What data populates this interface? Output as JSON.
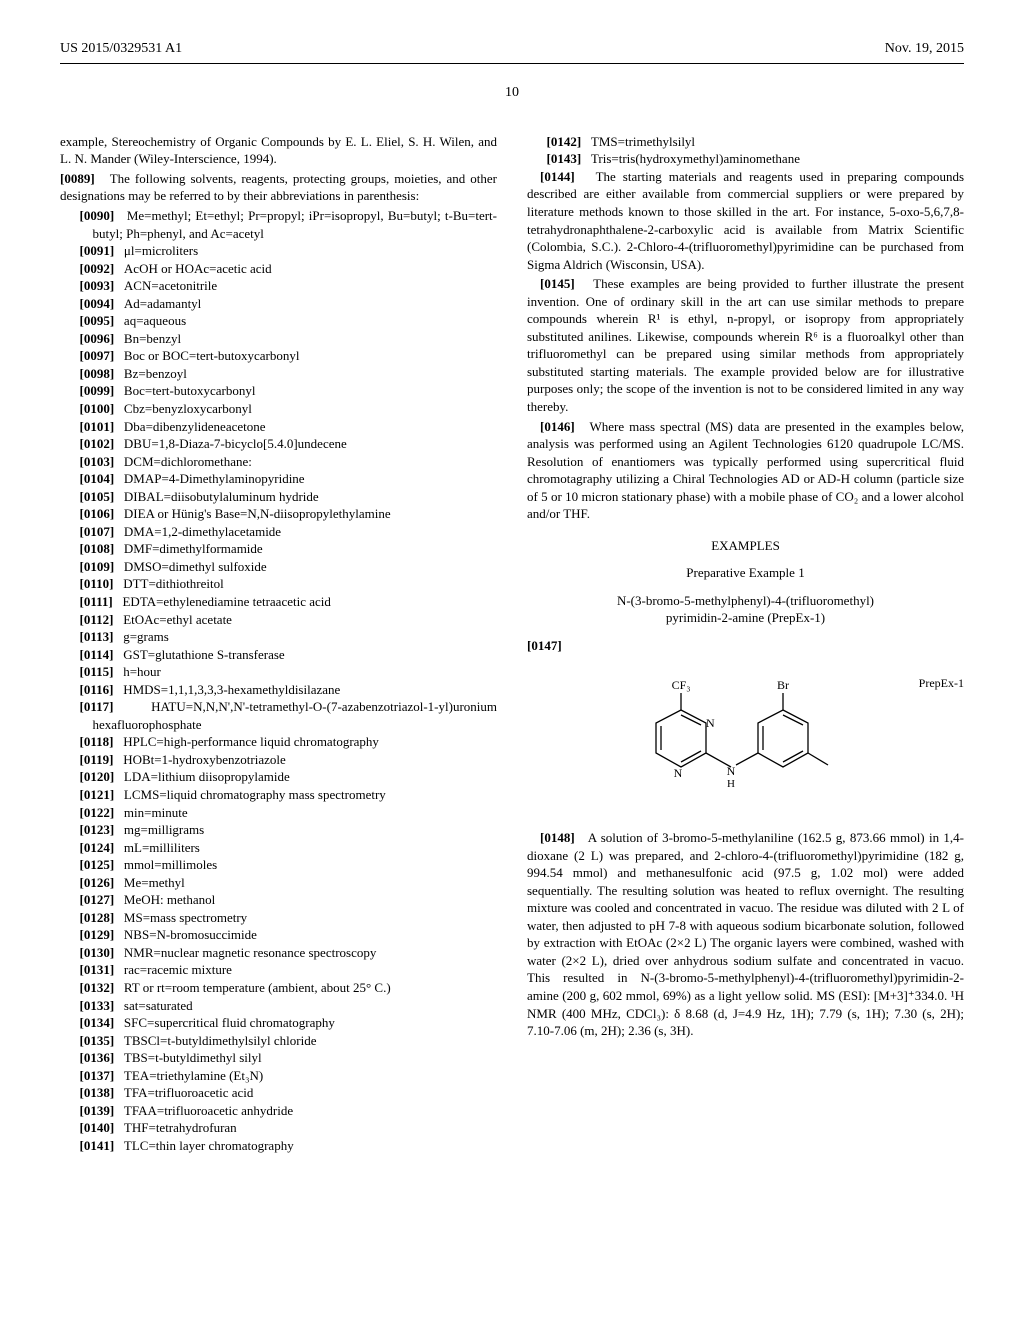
{
  "header": {
    "pub_number": "US 2015/0329531 A1",
    "pub_date": "Nov. 19, 2015"
  },
  "page_number": "10",
  "col1": {
    "intro": "example, Stereochemistry of Organic Compounds by E. L. Eliel, S. H. Wilen, and L. N. Mander (Wiley-Interscience, 1994).",
    "para_0089_num": "[0089]",
    "para_0089": "The following solvents, reagents, protecting groups, moieties, and other designations may be referred to by their abbreviations in parenthesis:",
    "abbrevs": [
      {
        "num": "[0090]",
        "text": "Me=methyl; Et=ethyl; Pr=propyl; iPr=isopropyl, Bu=butyl; t-Bu=tert-butyl; Ph=phenyl, and Ac=acetyl"
      },
      {
        "num": "[0091]",
        "text": "μl=microliters"
      },
      {
        "num": "[0092]",
        "text": "AcOH or HOAc=acetic acid"
      },
      {
        "num": "[0093]",
        "text": "ACN=acetonitrile"
      },
      {
        "num": "[0094]",
        "text": "Ad=adamantyl"
      },
      {
        "num": "[0095]",
        "text": "aq=aqueous"
      },
      {
        "num": "[0096]",
        "text": "Bn=benzyl"
      },
      {
        "num": "[0097]",
        "text": "Boc or BOC=tert-butoxycarbonyl"
      },
      {
        "num": "[0098]",
        "text": "Bz=benzoyl"
      },
      {
        "num": "[0099]",
        "text": "Boc=tert-butoxycarbonyl"
      },
      {
        "num": "[0100]",
        "text": "Cbz=benyzloxycarbonyl"
      },
      {
        "num": "[0101]",
        "text": "Dba=dibenzylideneacetone"
      },
      {
        "num": "[0102]",
        "text": "DBU=1,8-Diaza-7-bicyclo[5.4.0]undecene"
      },
      {
        "num": "[0103]",
        "text": "DCM=dichloromethane:"
      },
      {
        "num": "[0104]",
        "text": "DMAP=4-Dimethylaminopyridine"
      },
      {
        "num": "[0105]",
        "text": "DIBAL=diisobutylaluminum hydride"
      },
      {
        "num": "[0106]",
        "text": "DIEA or Hünig's Base=N,N-diisopropylethylamine"
      },
      {
        "num": "[0107]",
        "text": "DMA=1,2-dimethylacetamide"
      },
      {
        "num": "[0108]",
        "text": "DMF=dimethylformamide"
      },
      {
        "num": "[0109]",
        "text": "DMSO=dimethyl sulfoxide"
      },
      {
        "num": "[0110]",
        "text": "DTT=dithiothreitol"
      },
      {
        "num": "[0111]",
        "text": "EDTA=ethylenediamine tetraacetic acid"
      },
      {
        "num": "[0112]",
        "text": "EtOAc=ethyl acetate"
      },
      {
        "num": "[0113]",
        "text": "g=grams"
      },
      {
        "num": "[0114]",
        "text": "GST=glutathione S-transferase"
      },
      {
        "num": "[0115]",
        "text": "h=hour"
      },
      {
        "num": "[0116]",
        "text": "HMDS=1,1,1,3,3,3-hexamethyldisilazane"
      },
      {
        "num": "[0117]",
        "text": "HATU=N,N,N',N'-tetramethyl-O-(7-azabenzotriazol-1-yl)uronium hexafluorophosphate"
      },
      {
        "num": "[0118]",
        "text": "HPLC=high-performance liquid chromatography"
      },
      {
        "num": "[0119]",
        "text": "HOBt=1-hydroxybenzotriazole"
      },
      {
        "num": "[0120]",
        "text": "LDA=lithium diisopropylamide"
      },
      {
        "num": "[0121]",
        "text": "LCMS=liquid chromatography mass spectrometry"
      },
      {
        "num": "[0122]",
        "text": "min=minute"
      },
      {
        "num": "[0123]",
        "text": "mg=milligrams"
      },
      {
        "num": "[0124]",
        "text": "mL=milliliters"
      },
      {
        "num": "[0125]",
        "text": "mmol=millimoles"
      },
      {
        "num": "[0126]",
        "text": "Me=methyl"
      },
      {
        "num": "[0127]",
        "text": "MeOH: methanol"
      },
      {
        "num": "[0128]",
        "text": "MS=mass spectrometry"
      },
      {
        "num": "[0129]",
        "text": "NBS=N-bromosuccimide"
      },
      {
        "num": "[0130]",
        "text": "NMR=nuclear magnetic resonance spectroscopy"
      },
      {
        "num": "[0131]",
        "text": "rac=racemic mixture"
      },
      {
        "num": "[0132]",
        "text": "RT or rt=room temperature (ambient, about 25° C.)"
      },
      {
        "num": "[0133]",
        "text": "sat=saturated"
      },
      {
        "num": "[0134]",
        "text": "SFC=supercritical fluid chromatography"
      },
      {
        "num": "[0135]",
        "text": "TBSCl=t-butyldimethylsilyl chloride"
      },
      {
        "num": "[0136]",
        "text": "TBS=t-butyldimethyl silyl"
      },
      {
        "num": "[0137]",
        "text": "TEA=triethylamine (Et₃N)"
      },
      {
        "num": "[0138]",
        "text": "TFA=trifluoroacetic acid"
      },
      {
        "num": "[0139]",
        "text": "TFAA=trifluoroacetic anhydride"
      },
      {
        "num": "[0140]",
        "text": "THF=tetrahydrofuran"
      },
      {
        "num": "[0141]",
        "text": "TLC=thin layer chromatography"
      }
    ]
  },
  "col2": {
    "abbrevs": [
      {
        "num": "[0142]",
        "text": "TMS=trimethylsilyl"
      },
      {
        "num": "[0143]",
        "text": "Tris=tris(hydroxymethyl)aminomethane"
      }
    ],
    "para_0144_num": "[0144]",
    "para_0144": "The starting materials and reagents used in preparing compounds described are either available from commercial suppliers or were prepared by literature methods known to those skilled in the art. For instance, 5-oxo-5,6,7,8-tetrahydronaphthalene-2-carboxylic acid is available from Matrix Scientific (Colombia, S.C.). 2-Chloro-4-(trifluoromethyl)pyrimidine can be purchased from Sigma Aldrich (Wisconsin, USA).",
    "para_0145_num": "[0145]",
    "para_0145": "These examples are being provided to further illustrate the present invention. One of ordinary skill in the art can use similar methods to prepare compounds wherein R¹ is ethyl, n-propyl, or isopropy from appropriately substituted anilines. Likewise, compounds wherein R⁶ is a fluoroalkyl other than trifluoromethyl can be prepared using similar methods from appropriately substituted starting materials. The example provided below are for illustrative purposes only; the scope of the invention is not to be considered limited in any way thereby.",
    "para_0146_num": "[0146]",
    "para_0146": "Where mass spectral (MS) data are presented in the examples below, analysis was performed using an Agilent Technologies 6120 quadrupole LC/MS. Resolution of enantiomers was typically performed using supercritical fluid chromotagraphy utilizing a Chiral Technologies AD or AD-H column (particle size of 5 or 10 micron stationary phase) with a mobile phase of CO₂ and a lower alcohol and/or THF.",
    "examples_heading": "EXAMPLES",
    "prep_heading": "Preparative Example 1",
    "compound_name_line1": "N-(3-bromo-5-methylphenyl)-4-(trifluoromethyl)",
    "compound_name_line2": "pyrimidin-2-amine (PrepEx-1)",
    "para_0147_num": "[0147]",
    "structure_label": "PrepEx-1",
    "structure_cf3": "CF₃",
    "structure_br": "Br",
    "para_0148_num": "[0148]",
    "para_0148": "A solution of 3-bromo-5-methylaniline (162.5 g, 873.66 mmol) in 1,4-dioxane (2 L) was prepared, and 2-chloro-4-(trifluoromethyl)pyrimidine (182 g, 994.54 mmol) and methanesulfonic acid (97.5 g, 1.02 mol) were added sequentially. The resulting solution was heated to reflux overnight. The resulting mixture was cooled and concentrated in vacuo. The residue was diluted with 2 L of water, then adjusted to pH 7-8 with aqueous sodium bicarbonate solution, followed by extraction with EtOAc (2×2 L) The organic layers were combined, washed with water (2×2 L), dried over anhydrous sodium sulfate and concentrated in vacuo. This resulted in N-(3-bromo-5-methylphenyl)-4-(trifluoromethyl)pyrimidin-2-amine (200 g, 602 mmol, 69%) as a light yellow solid. MS (ESI): [M+3]⁺334.0. ¹H NMR (400 MHz, CDCl₃): δ 8.68 (d, J=4.9 Hz, 1H); 7.79 (s, 1H); 7.30 (s, 2H); 7.10-7.06 (m, 2H); 2.36 (s, 3H)."
  }
}
